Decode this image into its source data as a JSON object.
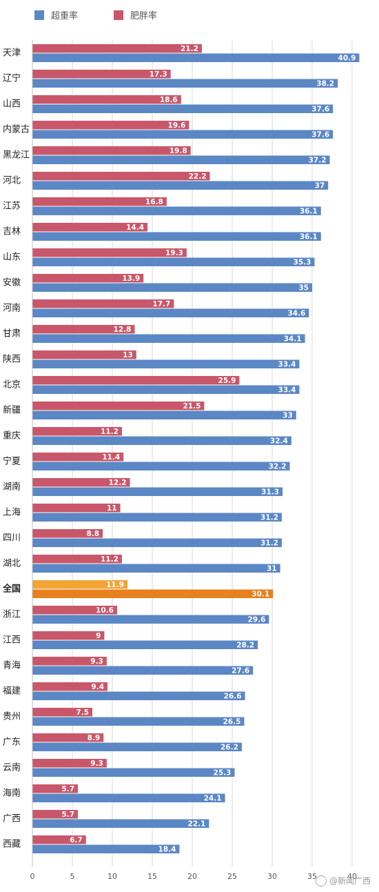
{
  "chart_data": {
    "type": "bar",
    "orientation": "horizontal",
    "categories": [
      "天津",
      "辽宁",
      "山西",
      "内蒙古",
      "黑龙江",
      "河北",
      "江苏",
      "吉林",
      "山东",
      "安徽",
      "河南",
      "甘肃",
      "陕西",
      "北京",
      "新疆",
      "重庆",
      "宁夏",
      "湖南",
      "上海",
      "四川",
      "湖北",
      "全国",
      "浙江",
      "江西",
      "青海",
      "福建",
      "贵州",
      "广东",
      "云南",
      "海南",
      "广西",
      "西藏"
    ],
    "highlight_category": "全国",
    "series": [
      {
        "name": "超重率",
        "color": "#5b87c5",
        "values": [
          40.9,
          38.2,
          37.6,
          37.6,
          37.2,
          37,
          36.1,
          36.1,
          35.3,
          35,
          34.6,
          34.1,
          33.4,
          33.4,
          33,
          32.4,
          32.2,
          31.3,
          31.2,
          31.2,
          31,
          30.1,
          29.6,
          28.2,
          27.6,
          26.6,
          26.5,
          26.2,
          25.3,
          24.1,
          22.1,
          18.4
        ]
      },
      {
        "name": "肥胖率",
        "color": "#c9576a",
        "values": [
          21.2,
          17.3,
          18.6,
          19.6,
          19.8,
          22.2,
          16.8,
          14.4,
          19.3,
          13.9,
          17.7,
          12.8,
          13,
          25.9,
          21.5,
          11.2,
          11.4,
          12.2,
          11,
          8.8,
          11.2,
          11.9,
          10.6,
          9,
          9.3,
          9.4,
          7.5,
          8.9,
          9.3,
          5.7,
          5.7,
          6.7
        ]
      }
    ],
    "highlight_colors": {
      "超重率": "#e8801e",
      "肥胖率": "#f0a535"
    },
    "xlim": [
      0,
      40
    ],
    "xticks": [
      0,
      5,
      10,
      15,
      20,
      25,
      30,
      35,
      40
    ],
    "grid": true,
    "legend_position": "top-left"
  },
  "watermark": "@新闻广西"
}
